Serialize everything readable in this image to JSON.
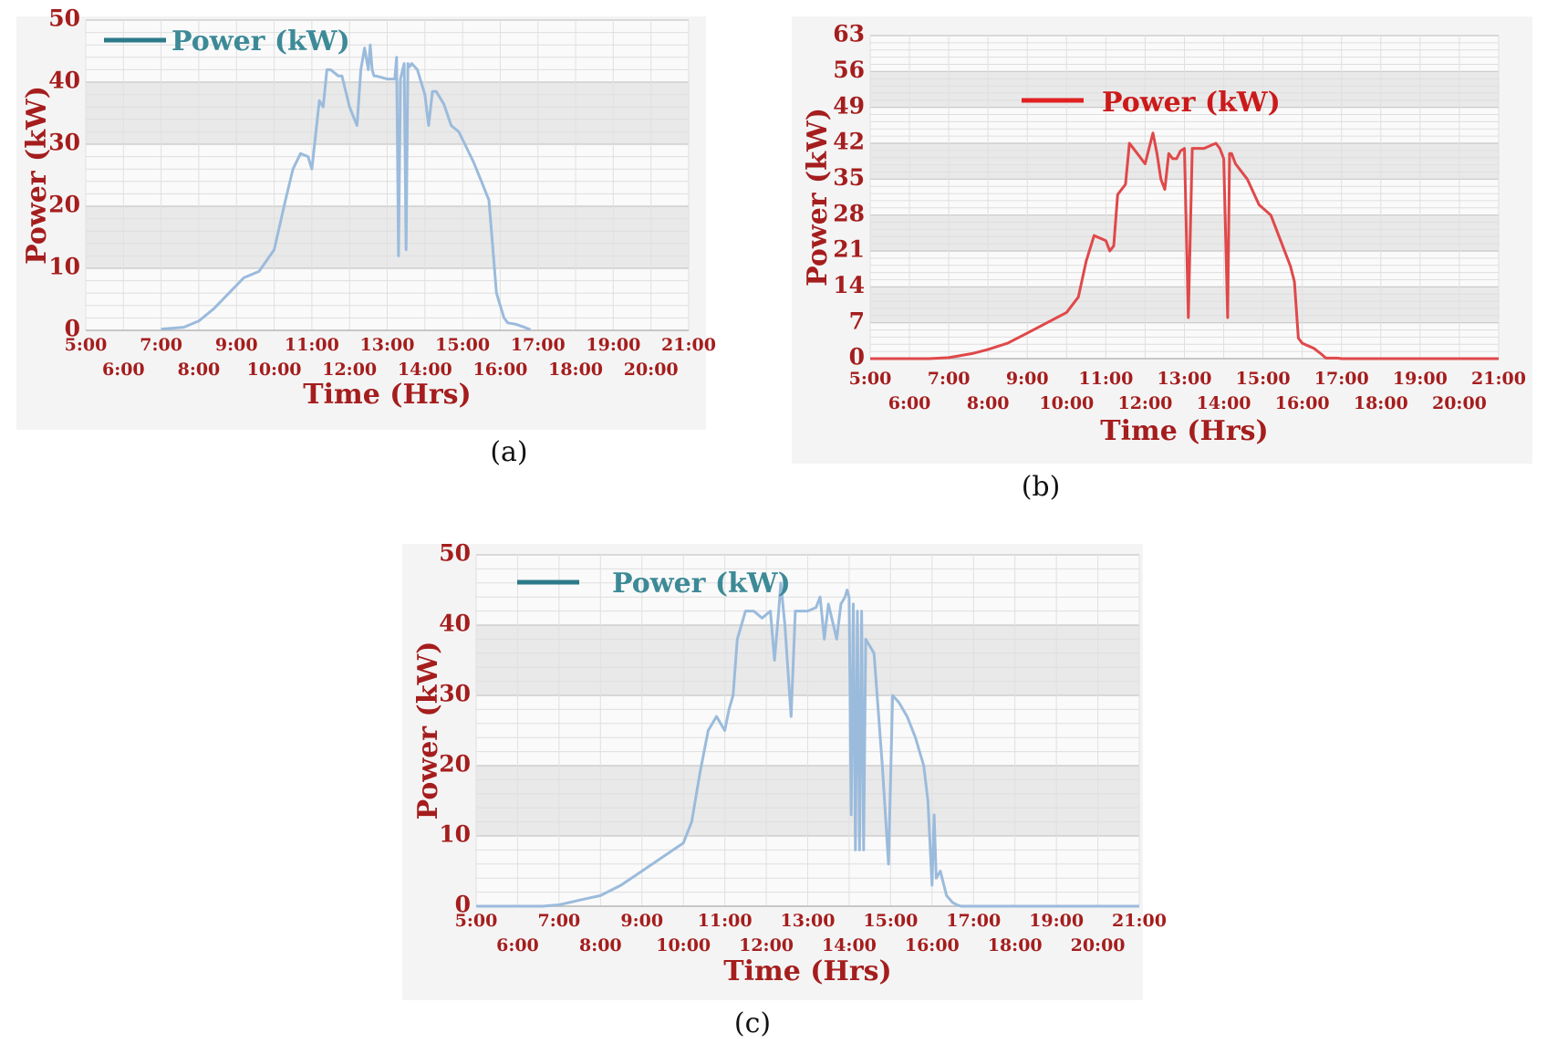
{
  "captions": [
    "(a)",
    "(b)",
    "(c)"
  ],
  "chart_data": [
    {
      "type": "line",
      "xlabel": "Time (Hrs)",
      "ylabel": "Power (kW)",
      "ylim": [
        0,
        50
      ],
      "yticks": [
        "0",
        "10",
        "20",
        "30",
        "40",
        "50"
      ],
      "xlim": [
        5,
        21
      ],
      "xticks_upper": [
        "5:00",
        "7:00",
        "9:00",
        "11:00",
        "13:00",
        "15:00",
        "17:00",
        "19:00",
        "21:00"
      ],
      "xticks_lower": [
        "6:00",
        "8:00",
        "10:00",
        "12:00",
        "14:00",
        "16:00",
        "18:00",
        "20:00"
      ],
      "legend": "top-left",
      "grid": true,
      "colors": {
        "line": "#9bbbdc",
        "legend_marker": "#2c7a8a",
        "legend_text": "#3d8a97",
        "labels": "#a51d1d"
      },
      "series": [
        {
          "name": "Power (kW)",
          "x": [
            7.0,
            7.6,
            8.0,
            8.4,
            8.8,
            9.2,
            9.6,
            10.0,
            10.3,
            10.5,
            10.7,
            10.9,
            11.0,
            11.2,
            11.3,
            11.4,
            11.5,
            11.6,
            11.7,
            11.8,
            12.0,
            12.2,
            12.3,
            12.4,
            12.5,
            12.55,
            12.6,
            12.65,
            12.7,
            13.0,
            13.2,
            13.25,
            13.3,
            13.35,
            13.45,
            13.5,
            13.55,
            13.6,
            13.65,
            13.8,
            14.0,
            14.1,
            14.2,
            14.3,
            14.5,
            14.7,
            14.9,
            15.1,
            15.3,
            15.5,
            15.7,
            15.9,
            16.0,
            16.1,
            16.2,
            16.4,
            16.6,
            16.8
          ],
          "y": [
            0.2,
            0.5,
            1.5,
            3.5,
            6,
            8.5,
            9.5,
            13,
            21,
            26,
            28.5,
            28,
            26,
            37,
            36,
            42,
            42,
            41.5,
            41,
            41,
            36,
            33,
            42,
            45.5,
            42,
            46,
            42,
            41,
            41,
            40.5,
            40.5,
            44,
            12,
            40.5,
            43,
            13,
            43,
            42.5,
            43,
            42,
            38,
            33,
            38.5,
            38.5,
            36.5,
            33,
            32,
            29.5,
            27,
            24,
            21,
            6,
            4,
            2,
            1.2,
            1,
            0.6,
            0.1
          ]
        }
      ]
    },
    {
      "type": "line",
      "xlabel": "Time (Hrs)",
      "ylabel": "Power (kW)",
      "ylim": [
        0,
        63
      ],
      "yticks": [
        "0",
        "7",
        "14",
        "21",
        "28",
        "35",
        "42",
        "49",
        "56",
        "63"
      ],
      "xlim": [
        5,
        21
      ],
      "xticks_upper": [
        "5:00",
        "7:00",
        "9:00",
        "11:00",
        "13:00",
        "15:00",
        "17:00",
        "19:00",
        "21:00"
      ],
      "xticks_lower": [
        "6:00",
        "8:00",
        "10:00",
        "12:00",
        "14:00",
        "16:00",
        "18:00",
        "20:00"
      ],
      "legend": "top-center",
      "grid": true,
      "colors": {
        "line": "#e0484a",
        "legend_marker": "#e02020",
        "legend_text": "#cc1a1a",
        "labels": "#a51d1d"
      },
      "series": [
        {
          "name": "Power (kW)",
          "x": [
            5.0,
            6.5,
            7.0,
            7.6,
            8.0,
            8.5,
            9.0,
            9.5,
            10.0,
            10.3,
            10.5,
            10.7,
            11.0,
            11.1,
            11.2,
            11.3,
            11.5,
            11.6,
            11.7,
            12.0,
            12.2,
            12.3,
            12.4,
            12.5,
            12.6,
            12.7,
            12.8,
            12.9,
            13.0,
            13.1,
            13.2,
            13.5,
            13.8,
            13.9,
            14.0,
            14.1,
            14.15,
            14.2,
            14.3,
            14.6,
            14.9,
            15.2,
            15.5,
            15.7,
            15.8,
            15.9,
            16.0,
            16.3,
            16.5,
            16.6,
            16.9,
            17.0,
            21.0
          ],
          "y": [
            0,
            0,
            0.2,
            1,
            1.8,
            3,
            5,
            7,
            9,
            12,
            19,
            24,
            23,
            21,
            22,
            32,
            34,
            42,
            41,
            38,
            44,
            40,
            35,
            33,
            40,
            39,
            39,
            40.5,
            41,
            8,
            41,
            41,
            42,
            41,
            39,
            8,
            40,
            40,
            38,
            35,
            30,
            28,
            22,
            18,
            15,
            4,
            3,
            2,
            0.8,
            0.1,
            0.1,
            0,
            0
          ]
        }
      ]
    },
    {
      "type": "line",
      "xlabel": "Time (Hrs)",
      "ylabel": "Power (kW)",
      "ylim": [
        0,
        50
      ],
      "yticks": [
        "0",
        "10",
        "20",
        "30",
        "40",
        "50"
      ],
      "xlim": [
        5,
        21
      ],
      "xticks_upper": [
        "5:00",
        "7:00",
        "9:00",
        "11:00",
        "13:00",
        "15:00",
        "17:00",
        "19:00",
        "21:00"
      ],
      "xticks_lower": [
        "6:00",
        "8:00",
        "10:00",
        "12:00",
        "14:00",
        "16:00",
        "18:00",
        "20:00"
      ],
      "legend": "top-left",
      "grid": true,
      "colors": {
        "line": "#9bbbdc",
        "legend_marker": "#2c7a8a",
        "legend_text": "#3d8a97",
        "labels": "#a51d1d"
      },
      "series": [
        {
          "name": "Power (kW)",
          "x": [
            5.0,
            6.6,
            7.0,
            7.6,
            8.0,
            8.5,
            9.0,
            9.5,
            10.0,
            10.2,
            10.4,
            10.6,
            10.8,
            11.0,
            11.1,
            11.2,
            11.3,
            11.5,
            11.7,
            11.9,
            12.1,
            12.2,
            12.3,
            12.35,
            12.45,
            12.6,
            12.7,
            12.8,
            13.0,
            13.2,
            13.3,
            13.4,
            13.5,
            13.7,
            13.8,
            13.9,
            13.95,
            14.0,
            14.05,
            14.1,
            14.15,
            14.2,
            14.25,
            14.3,
            14.35,
            14.4,
            14.6,
            14.8,
            14.95,
            15.05,
            15.2,
            15.4,
            15.6,
            15.8,
            15.9,
            16.0,
            16.05,
            16.1,
            16.2,
            16.35,
            16.5,
            16.6,
            16.7,
            17.0,
            21.0
          ],
          "y": [
            0,
            0,
            0.2,
            1,
            1.5,
            3,
            5,
            7,
            9,
            12,
            19,
            25,
            27,
            25,
            28,
            30,
            38,
            42,
            42,
            41,
            42,
            35,
            42,
            46,
            40,
            27,
            42,
            42,
            42,
            42.5,
            44,
            38,
            43,
            38,
            43,
            44,
            45,
            44,
            13,
            43,
            8,
            42,
            8,
            42,
            8,
            38,
            36,
            20,
            6,
            30,
            29,
            27,
            24,
            20,
            15,
            3,
            13,
            4,
            5,
            1.5,
            0.5,
            0.2,
            0,
            0,
            0
          ]
        }
      ]
    }
  ]
}
